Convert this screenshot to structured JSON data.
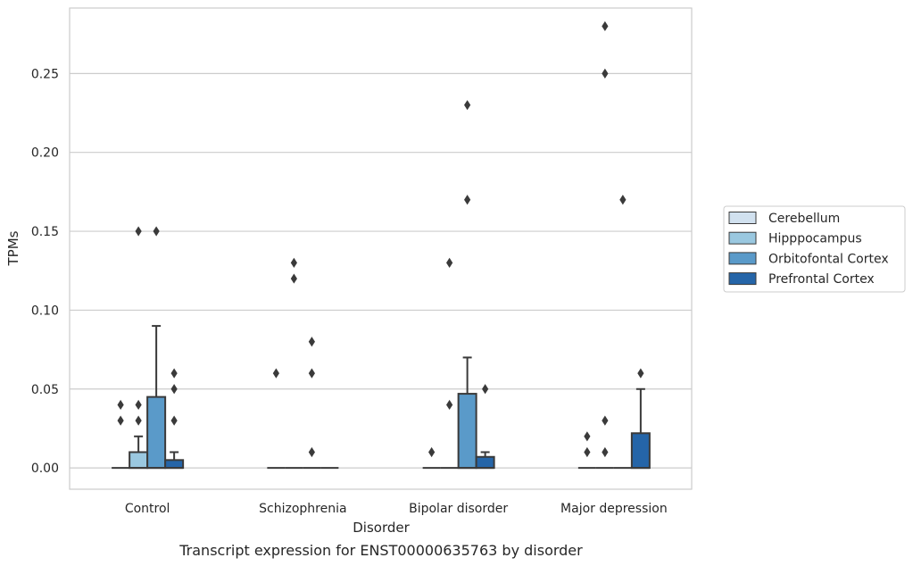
{
  "chart_data": {
    "type": "box",
    "title": "",
    "caption": "Transcript expression for ENST00000635763 by disorder",
    "xlabel": "Disorder",
    "ylabel": "TPMs",
    "ylim": [
      -0.0135,
      0.2915
    ],
    "yticks": [
      "0.00",
      "0.05",
      "0.10",
      "0.15",
      "0.20",
      "0.25"
    ],
    "grid": "horizontal",
    "legend_position": "right",
    "categories": [
      "Control",
      "Schizophrenia",
      "Bipolar disorder",
      "Major depression"
    ],
    "series": [
      {
        "name": "Cerebellum",
        "color": "#d1e1ef",
        "boxes": [
          {
            "min": 0,
            "q1": 0,
            "median": 0,
            "q3": 0,
            "max": 0,
            "outliers": [
              0.03,
              0.04
            ]
          },
          {
            "min": 0,
            "q1": 0,
            "median": 0,
            "q3": 0,
            "max": 0,
            "outliers": [
              0.06
            ]
          },
          {
            "min": 0,
            "q1": 0,
            "median": 0,
            "q3": 0,
            "max": 0,
            "outliers": [
              0.01
            ]
          },
          {
            "min": 0,
            "q1": 0,
            "median": 0,
            "q3": 0,
            "max": 0,
            "outliers": [
              0.01,
              0.02
            ]
          }
        ]
      },
      {
        "name": "Hipppocampus",
        "color": "#9ac8e0",
        "boxes": [
          {
            "min": 0,
            "q1": 0,
            "median": 0,
            "q3": 0.01,
            "max": 0.02,
            "outliers": [
              0.03,
              0.04,
              0.15
            ]
          },
          {
            "min": 0,
            "q1": 0,
            "median": 0,
            "q3": 0,
            "max": 0,
            "outliers": [
              0.12,
              0.13
            ]
          },
          {
            "min": 0,
            "q1": 0,
            "median": 0,
            "q3": 0,
            "max": 0,
            "outliers": [
              0.04,
              0.13
            ]
          },
          {
            "min": 0,
            "q1": 0,
            "median": 0,
            "q3": 0,
            "max": 0,
            "outliers": [
              0.01,
              0.03,
              0.25,
              0.28
            ]
          }
        ]
      },
      {
        "name": "Orbitofontal Cortex",
        "color": "#5a9ac9",
        "boxes": [
          {
            "min": 0,
            "q1": 0,
            "median": 0,
            "q3": 0.045,
            "max": 0.09,
            "outliers": [
              0.15
            ]
          },
          {
            "min": 0,
            "q1": 0,
            "median": 0,
            "q3": 0,
            "max": 0,
            "outliers": [
              0.01,
              0.06,
              0.08
            ]
          },
          {
            "min": 0,
            "q1": 0,
            "median": 0,
            "q3": 0.047,
            "max": 0.07,
            "outliers": [
              0.17,
              0.23
            ]
          },
          {
            "min": 0,
            "q1": 0,
            "median": 0,
            "q3": 0,
            "max": 0,
            "outliers": [
              0.17
            ]
          }
        ]
      },
      {
        "name": "Prefrontal Cortex",
        "color": "#2565a8",
        "boxes": [
          {
            "min": 0,
            "q1": 0,
            "median": 0,
            "q3": 0.005,
            "max": 0.01,
            "outliers": [
              0.03,
              0.05,
              0.06
            ]
          },
          {
            "min": 0,
            "q1": 0,
            "median": 0,
            "q3": 0,
            "max": 0,
            "outliers": []
          },
          {
            "min": 0,
            "q1": 0,
            "median": 0,
            "q3": 0.007,
            "max": 0.01,
            "outliers": [
              0.05
            ]
          },
          {
            "min": 0,
            "q1": 0,
            "median": 0,
            "q3": 0.022,
            "max": 0.05,
            "outliers": [
              0.06
            ]
          }
        ]
      }
    ]
  }
}
